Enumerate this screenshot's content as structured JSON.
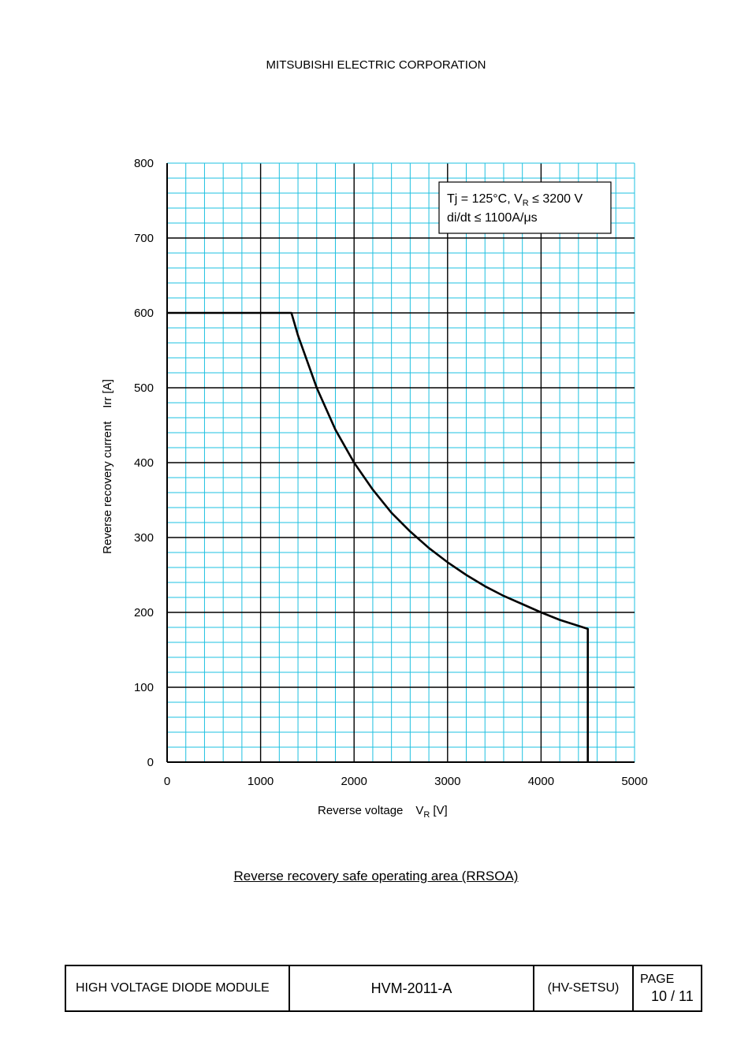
{
  "header": {
    "company": "MITSUBISHI ELECTRIC CORPORATION"
  },
  "chart_data": {
    "type": "line",
    "title": "",
    "xlabel": "Reverse voltage",
    "xlabel_symbol": "V",
    "xlabel_subscript": "R",
    "xlabel_unit": "[V]",
    "ylabel": "Reverse recovery current    Irr [A]",
    "xlim": [
      0,
      5000
    ],
    "ylim": [
      0,
      800
    ],
    "x_ticks": [
      0,
      1000,
      2000,
      3000,
      4000,
      5000
    ],
    "y_ticks": [
      0,
      100,
      200,
      300,
      400,
      500,
      600,
      700,
      800
    ],
    "grid": true,
    "legend": "none",
    "annotation": {
      "line1_prefix": "Tj = 125°C, V",
      "line1_sub": "R",
      "line1_suffix": " ≤ 3200 V",
      "line2": "di/dt ≤ 1100A/μs",
      "placement": "top-right"
    },
    "series": [
      {
        "color": "#000000",
        "x": [
          0,
          1330,
          1400,
          1600,
          1800,
          2000,
          2200,
          2400,
          2600,
          2800,
          3000,
          3200,
          3400,
          3600,
          3800,
          4000,
          4200,
          4500,
          4500
        ],
        "y": [
          600,
          600,
          570,
          500,
          444,
          400,
          364,
          333,
          308,
          286,
          267,
          250,
          235,
          222,
          211,
          200,
          190,
          178,
          0
        ]
      }
    ],
    "colors": {
      "minor_grid": "#1ec0e0",
      "major_grid": "#000000",
      "curve": "#000000"
    }
  },
  "caption": "Reverse recovery safe operating area (RRSOA)",
  "footer": {
    "title": "HIGH VOLTAGE DIODE MODULE",
    "doc_no": "HVM-2011-A",
    "code": "(HV-SETSU)",
    "page_label": "PAGE",
    "page_value": "10 / 11"
  }
}
